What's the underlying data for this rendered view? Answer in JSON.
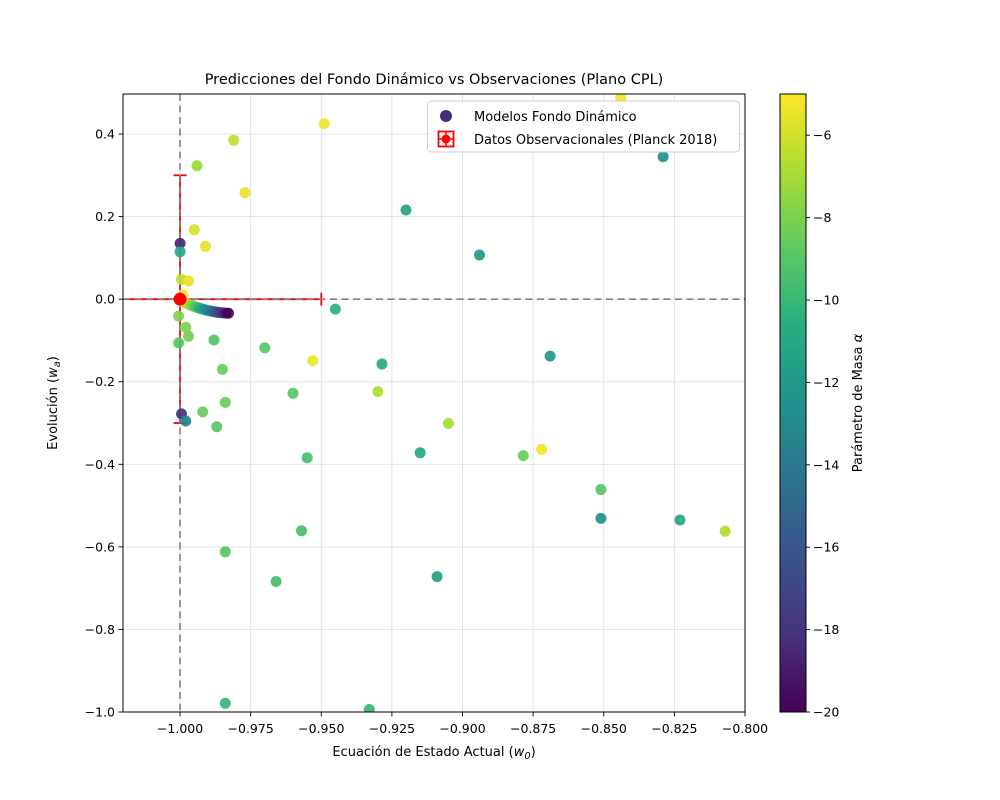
{
  "chart_data": {
    "type": "scatter",
    "title": "Predicciones del Fondo Dinámico vs Observaciones (Plano CPL)",
    "xlabel": "Ecuación de Estado Actual (w0)",
    "ylabel": "Evolución (wa)",
    "xlabel_rich": {
      "prefix": "Ecuación de Estado Actual (",
      "variable": "w",
      "subscript": "0",
      "suffix": ")"
    },
    "ylabel_rich": {
      "prefix": "Evolución (",
      "variable": "w",
      "subscript": "a",
      "suffix": ")"
    },
    "xlim": [
      -1.0202,
      -0.8
    ],
    "ylim": [
      -1.0,
      0.497
    ],
    "grid": true,
    "background": "#ffffff",
    "grid_color": "#e0e0e0",
    "xticks": [
      {
        "value": -1.0,
        "label": "−1.000"
      },
      {
        "value": -0.975,
        "label": "−0.975"
      },
      {
        "value": -0.95,
        "label": "−0.950"
      },
      {
        "value": -0.925,
        "label": "−0.925"
      },
      {
        "value": -0.9,
        "label": "−0.900"
      },
      {
        "value": -0.875,
        "label": "−0.875"
      },
      {
        "value": -0.85,
        "label": "−0.850"
      },
      {
        "value": -0.825,
        "label": "−0.825"
      },
      {
        "value": -0.8,
        "label": "−0.800"
      }
    ],
    "yticks": [
      {
        "value": 0.4,
        "label": "0.4"
      },
      {
        "value": 0.2,
        "label": "0.2"
      },
      {
        "value": 0.0,
        "label": "0.0"
      },
      {
        "value": -0.2,
        "label": "−0.2"
      },
      {
        "value": -0.4,
        "label": "−0.4"
      },
      {
        "value": -0.6,
        "label": "−0.6"
      },
      {
        "value": -0.8,
        "label": "−0.8"
      },
      {
        "value": -1.0,
        "label": "−1.0"
      }
    ],
    "reference_lines": {
      "vline_x": -1.0,
      "hline_y": 0.0,
      "style": "dashed",
      "color": "#808080"
    },
    "legend": [
      {
        "label": "Modelos Fondo Dinámico",
        "marker": "dot",
        "marker_color": "#472d7b"
      },
      {
        "label": "Datos Observacionales (Planck 2018)",
        "marker": "errorbar-square",
        "marker_color": "#ff0000"
      }
    ],
    "observation": {
      "x": -1.0,
      "y": 0.0,
      "xerr": 0.05,
      "yerr": 0.3,
      "color": "#ff0000"
    },
    "colorbar": {
      "label": "Parámetro de Masa α",
      "label_rich": {
        "prefix": "Parámetro de Masa ",
        "variable": "α"
      },
      "colormap": "viridis",
      "vmin": -20,
      "vmax": -5,
      "ticks": [
        {
          "value": -6,
          "label": "−6"
        },
        {
          "value": -8,
          "label": "−8"
        },
        {
          "value": -10,
          "label": "−10"
        },
        {
          "value": -12,
          "label": "−12"
        },
        {
          "value": -14,
          "label": "−14"
        },
        {
          "value": -16,
          "label": "−16"
        },
        {
          "value": -18,
          "label": "−18"
        },
        {
          "value": -20,
          "label": "−20"
        }
      ]
    },
    "series": [
      {
        "name": "Modelos Fondo Dinámico",
        "color_by": "alpha",
        "points_format": [
          "w0",
          "wa",
          "alpha"
        ],
        "points": [
          [
            -0.949,
            0.425,
            -5.3
          ],
          [
            -0.981,
            0.385,
            -6.5
          ],
          [
            -0.994,
            0.323,
            -7.2
          ],
          [
            -0.977,
            0.258,
            -5.5
          ],
          [
            -0.92,
            0.216,
            -11.5
          ],
          [
            -0.995,
            0.168,
            -6.0
          ],
          [
            -1.0,
            0.135,
            -18.5
          ],
          [
            -1.0,
            0.115,
            -11.0
          ],
          [
            -0.991,
            0.128,
            -5.5
          ],
          [
            -0.844,
            0.488,
            -5.2
          ],
          [
            -0.829,
            0.345,
            -12.5
          ],
          [
            -0.894,
            0.107,
            -12.0
          ],
          [
            -0.9995,
            0.048,
            -6.5
          ],
          [
            -0.997,
            0.044,
            -5.5
          ],
          [
            -0.999,
            0.01,
            -5.2
          ],
          [
            -1.0005,
            -0.041,
            -8.0
          ],
          [
            -0.998,
            -0.068,
            -8.0
          ],
          [
            -0.997,
            -0.09,
            -8.2
          ],
          [
            -1.0005,
            -0.106,
            -9.0
          ],
          [
            -0.988,
            -0.099,
            -9.0
          ],
          [
            -0.97,
            -0.118,
            -9.0
          ],
          [
            -0.953,
            -0.149,
            -5.4
          ],
          [
            -0.9285,
            -0.157,
            -11.0
          ],
          [
            -0.985,
            -0.17,
            -8.5
          ],
          [
            -0.96,
            -0.228,
            -9.0
          ],
          [
            -0.93,
            -0.224,
            -6.8
          ],
          [
            -0.984,
            -0.25,
            -8.5
          ],
          [
            -0.992,
            -0.273,
            -8.5
          ],
          [
            -0.9995,
            -0.278,
            -18.0
          ],
          [
            -0.998,
            -0.295,
            -13.5
          ],
          [
            -0.987,
            -0.309,
            -9.0
          ],
          [
            -0.905,
            -0.301,
            -7.0
          ],
          [
            -0.915,
            -0.372,
            -11.0
          ],
          [
            -0.955,
            -0.384,
            -9.5
          ],
          [
            -0.945,
            -0.024,
            -10.5
          ],
          [
            -0.869,
            -0.138,
            -12.0
          ],
          [
            -0.872,
            -0.364,
            -5.3
          ],
          [
            -0.8785,
            -0.379,
            -8.5
          ],
          [
            -0.851,
            -0.461,
            -9.0
          ],
          [
            -0.851,
            -0.531,
            -12.5
          ],
          [
            -0.823,
            -0.535,
            -11.0
          ],
          [
            -0.807,
            -0.562,
            -6.8
          ],
          [
            -0.957,
            -0.561,
            -9.5
          ],
          [
            -0.984,
            -0.612,
            -9.0
          ],
          [
            -0.966,
            -0.684,
            -9.5
          ],
          [
            -0.909,
            -0.672,
            -11.5
          ],
          [
            -0.984,
            -0.979,
            -10.0
          ],
          [
            -0.933,
            -0.994,
            -10.0
          ],
          [
            -0.999,
            -0.006,
            -5.0
          ],
          [
            -0.9981,
            -0.009,
            -5.9
          ],
          [
            -0.9971,
            -0.0118,
            -6.8
          ],
          [
            -0.9962,
            -0.0145,
            -7.6
          ],
          [
            -0.9952,
            -0.017,
            -8.5
          ],
          [
            -0.9943,
            -0.0193,
            -9.4
          ],
          [
            -0.9933,
            -0.0214,
            -10.3
          ],
          [
            -0.9924,
            -0.0234,
            -11.2
          ],
          [
            -0.9914,
            -0.0252,
            -12.1
          ],
          [
            -0.9905,
            -0.0268,
            -12.9
          ],
          [
            -0.9895,
            -0.0283,
            -13.8
          ],
          [
            -0.9886,
            -0.0296,
            -14.7
          ],
          [
            -0.9876,
            -0.0308,
            -15.6
          ],
          [
            -0.9867,
            -0.0318,
            -16.5
          ],
          [
            -0.9857,
            -0.0326,
            -17.4
          ],
          [
            -0.9848,
            -0.0332,
            -18.2
          ],
          [
            -0.9838,
            -0.0337,
            -19.1
          ],
          [
            -0.9829,
            -0.034,
            -20.0
          ]
        ]
      }
    ]
  }
}
